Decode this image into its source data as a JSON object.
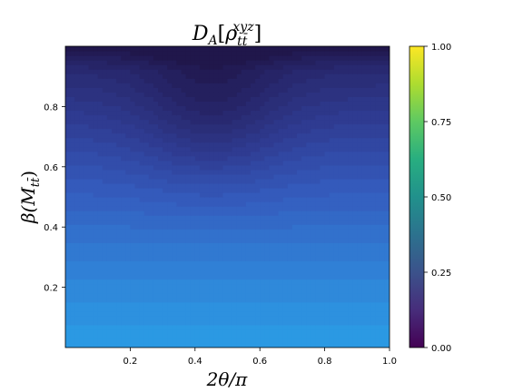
{
  "chart_data": {
    "type": "heatmap",
    "title_main": "D",
    "title_sub": "A",
    "title_rho": "ρ",
    "title_rho_sub": "tt̄",
    "title_rho_sup": "xyz",
    "xlabel": "2θ/π",
    "ylabel_main": "β(M",
    "ylabel_sub": "tt̄",
    "ylabel_close": ")",
    "xlim": [
      0.0,
      1.0
    ],
    "ylim": [
      0.0,
      1.0
    ],
    "xticks": [
      0.2,
      0.4,
      0.6,
      0.8,
      1.0
    ],
    "yticks": [
      0.2,
      0.4,
      0.6,
      0.8
    ],
    "colorbar": {
      "range": [
        0.0,
        1.0
      ],
      "ticks": [
        0.0,
        0.25,
        0.5,
        0.75,
        1.0
      ],
      "tick_labels": [
        "0.00",
        "0.25",
        "0.50",
        "0.75",
        "1.00"
      ],
      "colormap": "viridis"
    },
    "contour_levels": 24,
    "approx_values": {
      "bottom_row_beta_0": 0.47,
      "top_row_beta_1": 0.08,
      "minimum_region": {
        "theta_2pi": 0.45,
        "beta": 0.8,
        "value": 0.1
      }
    }
  }
}
